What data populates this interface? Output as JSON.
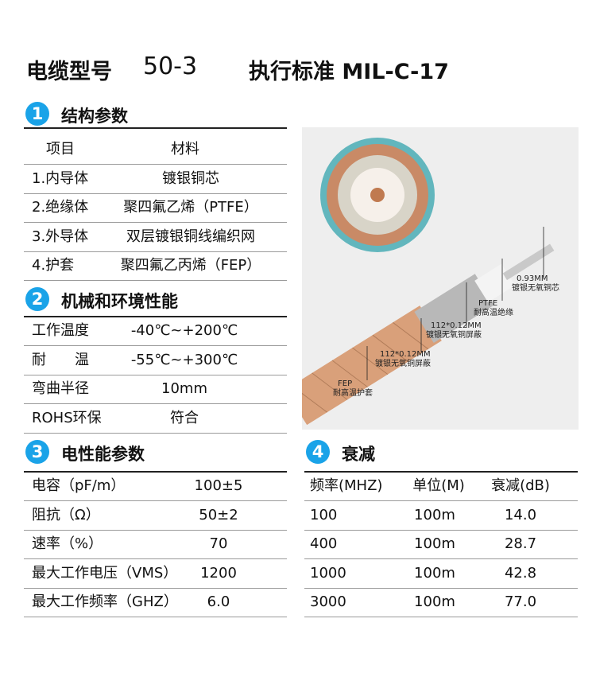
{
  "header": {
    "model_label": "电缆型号",
    "model": "50-3",
    "standard": "执行标准 MIL-C-17"
  },
  "sections": [
    {
      "number": "1",
      "title": "结构参数",
      "columns": [
        "项目",
        "材料"
      ],
      "rows": [
        [
          "1.内导体",
          "镀银铜芯"
        ],
        [
          "2.绝缘体",
          "聚四氟乙烯（PTFE）"
        ],
        [
          "3.外导体",
          "双层镀银铜线编织网"
        ],
        [
          "4.护套",
          "聚四氟乙丙烯（FEP）"
        ]
      ]
    },
    {
      "number": "2",
      "title": "机械和环境性能",
      "rows": [
        [
          "工作温度",
          "-40℃~+200℃"
        ],
        [
          "耐　　温",
          "-55℃~+300℃"
        ],
        [
          "弯曲半径",
          "10mm"
        ],
        [
          "ROHS环保",
          "符合"
        ]
      ]
    },
    {
      "number": "3",
      "title": "电性能参数",
      "rows": [
        [
          "电容（pF/m）",
          "100±5"
        ],
        [
          "阻抗（Ω）",
          "50±2"
        ],
        [
          "速率（%）",
          "70"
        ],
        [
          "最大工作电压（VMS）",
          "1200"
        ],
        [
          "最大工作频率（GHZ）",
          "6.0"
        ]
      ]
    },
    {
      "number": "4",
      "title": "衰减",
      "columns": [
        "频率(MHZ)",
        "单位(M)",
        "衰减(dB)"
      ],
      "rows": [
        [
          "100",
          "100m",
          "14.0"
        ],
        [
          "400",
          "100m",
          "28.7"
        ],
        [
          "1000",
          "100m",
          "42.8"
        ],
        [
          "3000",
          "100m",
          "77.0"
        ]
      ]
    }
  ],
  "image_labels": [
    {
      "size": "0.93MM",
      "text": "镀银无氧铜芯"
    },
    {
      "size": "PTFE",
      "text": "耐高温绝缘"
    },
    {
      "size": "112*0.12MM",
      "text": "镀银无氧铜屏蔽"
    },
    {
      "size": "112*0.12MM",
      "text": "镀银无氧铜屏蔽"
    },
    {
      "size": "FEP",
      "text": "耐高温护套"
    }
  ]
}
